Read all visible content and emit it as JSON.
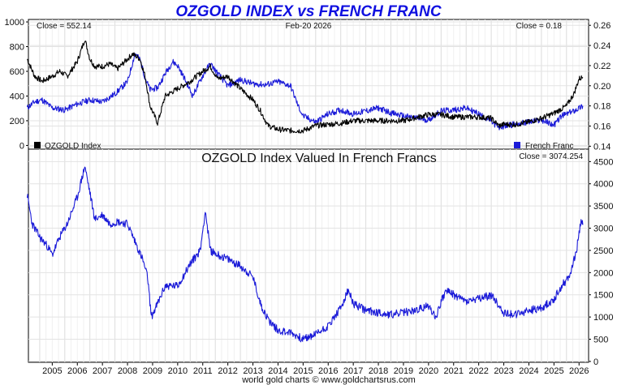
{
  "chart_data": [
    {
      "type": "line",
      "title": "OZGOLD INDEX vs FRENCH FRANC",
      "date_label": "Feb-20  2026",
      "close_left_label": "Close = 552.14",
      "close_right_label": "Close = 0.18",
      "legend": {
        "placement": "bottom",
        "left": "OZGOLD Index",
        "right": "French Franc"
      },
      "left_axis": {
        "ylim": [
          -30,
          1020
        ],
        "ticks": [
          "0",
          "200",
          "400",
          "600",
          "800",
          "1000"
        ],
        "tick_values": [
          0,
          200,
          400,
          600,
          800,
          1000
        ]
      },
      "right_axis": {
        "ylim": [
          0.1371,
          0.2658
        ],
        "ticks": [
          "0.14",
          "0.16",
          "0.18",
          "0.20",
          "0.22",
          "0.24",
          "0.26"
        ],
        "tick_values": [
          0.14,
          0.16,
          0.18,
          0.2,
          0.22,
          0.24,
          0.26
        ]
      },
      "series": [
        {
          "name": "OZGOLD Index",
          "axis": "left",
          "color": "#000000",
          "x": [
            2004.0,
            2004.3,
            2004.6,
            2005.0,
            2005.3,
            2005.6,
            2006.0,
            2006.3,
            2006.5,
            2006.7,
            2007.0,
            2007.3,
            2007.6,
            2008.0,
            2008.2,
            2008.5,
            2008.7,
            2008.9,
            2009.2,
            2009.5,
            2010.0,
            2010.5,
            2011.0,
            2011.3,
            2011.6,
            2012.0,
            2012.5,
            2013.0,
            2013.3,
            2013.6,
            2014.0,
            2014.5,
            2015.0,
            2015.5,
            2016.0,
            2016.5,
            2017.0,
            2018.0,
            2019.0,
            2020.0,
            2020.5,
            2021.0,
            2022.0,
            2022.5,
            2022.8,
            2023.0,
            2023.5,
            2024.0,
            2024.5,
            2025.0,
            2025.5,
            2025.8,
            2026.0,
            2026.15
          ],
          "values": [
            700,
            560,
            520,
            560,
            600,
            560,
            680,
            860,
            700,
            640,
            640,
            660,
            620,
            700,
            740,
            700,
            560,
            320,
            180,
            400,
            460,
            520,
            600,
            640,
            540,
            560,
            460,
            370,
            280,
            160,
            130,
            120,
            120,
            160,
            170,
            180,
            200,
            200,
            200,
            250,
            250,
            230,
            230,
            220,
            160,
            170,
            170,
            190,
            220,
            260,
            320,
            420,
            540,
            552
          ]
        },
        {
          "name": "French Franc",
          "axis": "right",
          "color": "#1a1ad8",
          "x": [
            2004.0,
            2004.3,
            2004.6,
            2005.0,
            2005.5,
            2006.0,
            2006.5,
            2007.0,
            2007.5,
            2008.0,
            2008.3,
            2008.5,
            2008.7,
            2008.9,
            2009.2,
            2009.5,
            2009.8,
            2010.0,
            2010.3,
            2010.6,
            2011.0,
            2011.3,
            2011.6,
            2012.0,
            2012.5,
            2013.0,
            2013.5,
            2014.0,
            2014.5,
            2014.8,
            2015.0,
            2015.5,
            2016.0,
            2016.5,
            2017.0,
            2017.5,
            2018.0,
            2018.5,
            2019.0,
            2019.5,
            2020.0,
            2020.5,
            2021.0,
            2021.5,
            2022.0,
            2022.5,
            2022.8,
            2023.0,
            2023.5,
            2024.0,
            2024.5,
            2025.0,
            2025.3,
            2025.7,
            2026.0,
            2026.15
          ],
          "values": [
            0.178,
            0.184,
            0.186,
            0.178,
            0.176,
            0.182,
            0.186,
            0.184,
            0.192,
            0.204,
            0.232,
            0.226,
            0.208,
            0.196,
            0.198,
            0.212,
            0.224,
            0.22,
            0.206,
            0.19,
            0.21,
            0.222,
            0.212,
            0.2,
            0.206,
            0.202,
            0.201,
            0.204,
            0.2,
            0.18,
            0.17,
            0.164,
            0.172,
            0.176,
            0.172,
            0.175,
            0.178,
            0.173,
            0.17,
            0.168,
            0.166,
            0.175,
            0.176,
            0.178,
            0.172,
            0.165,
            0.158,
            0.16,
            0.162,
            0.164,
            0.166,
            0.161,
            0.17,
            0.174,
            0.178,
            0.18
          ]
        }
      ]
    },
    {
      "type": "line",
      "title": "OZGOLD Index Valued In French Francs",
      "close_label": "Close = 3074.254",
      "y_axis": {
        "ylim": [
          -20,
          4780
        ],
        "ticks": [
          "0",
          "500",
          "1000",
          "1500",
          "2000",
          "2500",
          "3000",
          "3500",
          "4000",
          "4500"
        ],
        "tick_values": [
          0,
          500,
          1000,
          1500,
          2000,
          2500,
          3000,
          3500,
          4000,
          4500
        ]
      },
      "series": [
        {
          "name": "OZGOLD Index in French Francs",
          "color": "#1a1ad8",
          "x": [
            2004.0,
            2004.2,
            2004.5,
            2004.8,
            2005.0,
            2005.3,
            2005.6,
            2006.0,
            2006.3,
            2006.5,
            2006.7,
            2007.0,
            2007.3,
            2007.6,
            2008.0,
            2008.3,
            2008.6,
            2008.8,
            2008.95,
            2009.2,
            2009.5,
            2010.0,
            2010.5,
            2010.9,
            2011.1,
            2011.3,
            2011.6,
            2012.0,
            2012.5,
            2013.0,
            2013.3,
            2013.6,
            2014.0,
            2014.5,
            2015.0,
            2015.3,
            2015.6,
            2016.0,
            2016.5,
            2016.8,
            2017.0,
            2017.5,
            2018.0,
            2018.5,
            2019.0,
            2019.5,
            2020.0,
            2020.3,
            2020.5,
            2020.7,
            2021.0,
            2021.5,
            2022.0,
            2022.5,
            2022.8,
            2023.0,
            2023.5,
            2024.0,
            2024.5,
            2025.0,
            2025.3,
            2025.6,
            2025.9,
            2026.0,
            2026.1,
            2026.15
          ],
          "values": [
            3750,
            3100,
            2800,
            2600,
            2400,
            2800,
            3100,
            3700,
            4400,
            3800,
            3200,
            3300,
            3100,
            3150,
            3100,
            2700,
            2300,
            1900,
            1000,
            1300,
            1700,
            1700,
            2200,
            2500,
            3400,
            2500,
            2400,
            2300,
            2150,
            1900,
            1300,
            950,
            700,
            650,
            500,
            560,
            650,
            800,
            1200,
            1600,
            1300,
            1150,
            1100,
            1050,
            1100,
            1150,
            1250,
            1000,
            1350,
            1600,
            1500,
            1350,
            1400,
            1500,
            1250,
            1100,
            1050,
            1150,
            1200,
            1400,
            1700,
            1900,
            2500,
            2900,
            3200,
            3074
          ]
        }
      ]
    }
  ],
  "x_axis": {
    "xlim": [
      2004.05,
      2026.38
    ],
    "labels": [
      "2005",
      "2006",
      "2007",
      "2008",
      "2009",
      "2010",
      "2011",
      "2012",
      "2013",
      "2014",
      "2015",
      "2016",
      "2017",
      "2018",
      "2019",
      "2020",
      "2021",
      "2022",
      "2023",
      "2024",
      "2025",
      "2026"
    ],
    "label_values": [
      2005,
      2006,
      2007,
      2008,
      2009,
      2010,
      2011,
      2012,
      2013,
      2014,
      2015,
      2016,
      2017,
      2018,
      2019,
      2020,
      2021,
      2022,
      2023,
      2024,
      2025,
      2026
    ]
  },
  "credit": "world gold charts © www.goldchartsrus.com"
}
